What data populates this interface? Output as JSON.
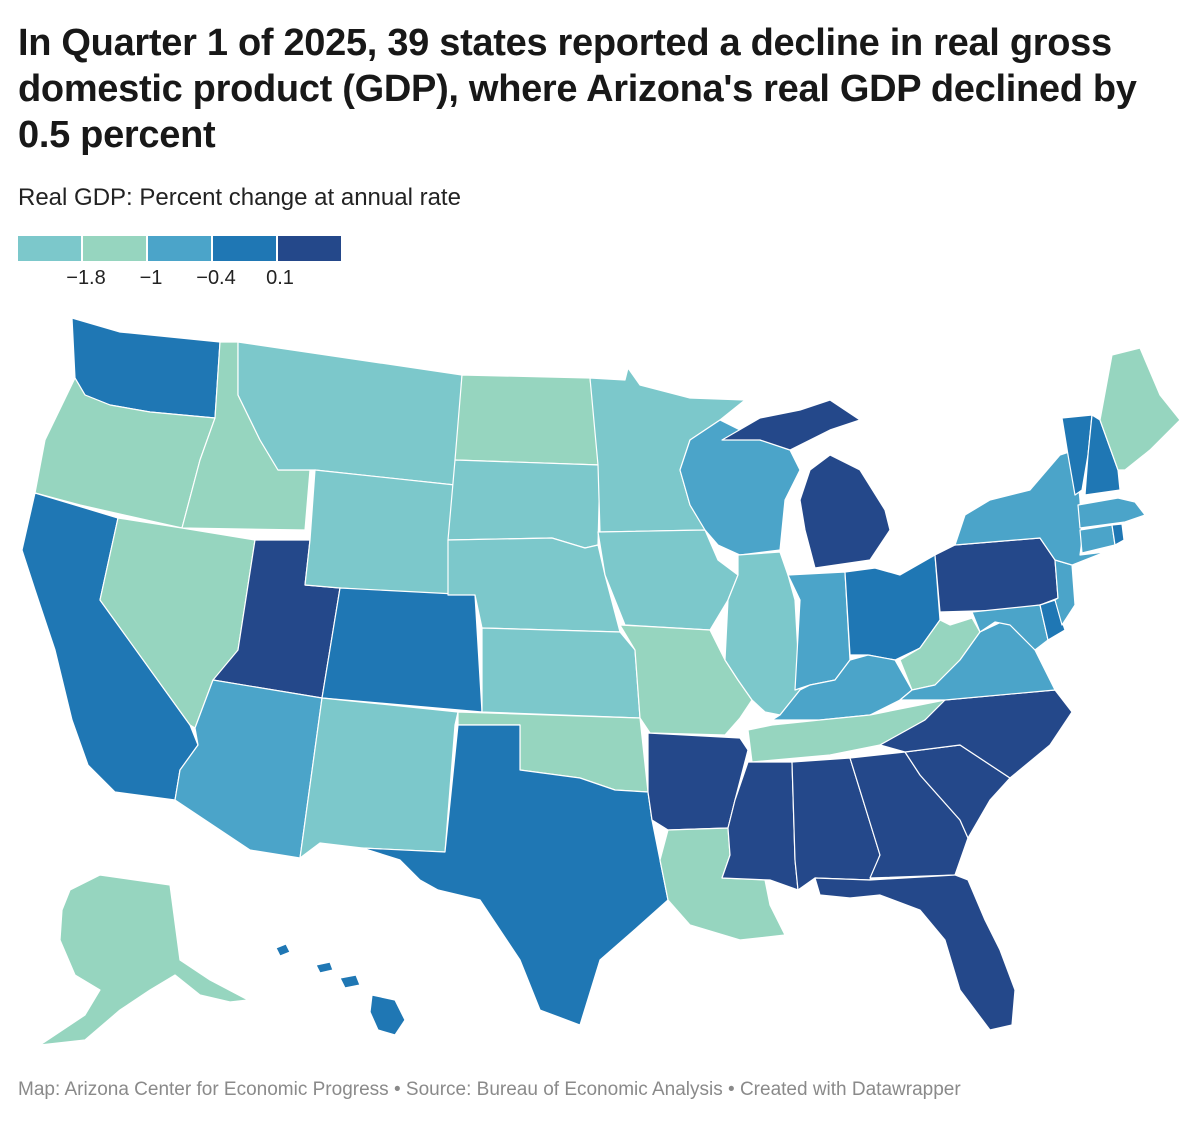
{
  "title": "In Quarter 1 of 2025, 39 states reported a decline in real gross domestic product (GDP), where Arizona's real GDP declined by 0.5 percent",
  "subtitle": "Real GDP: Percent change at annual rate",
  "legend": {
    "colors": [
      "#7cc8cb",
      "#96d5bf",
      "#4ba4c9",
      "#1f77b4",
      "#24488a"
    ],
    "ticks": [
      "−1.8",
      "−1",
      "−0.4",
      "0.1"
    ]
  },
  "footer": {
    "map_credit": "Map: Arizona Center for Economic Progress",
    "source": "Source: Bureau of Economic Analysis",
    "created": "Created with Datawrapper",
    "separator": "•"
  },
  "chart_data": {
    "type": "choropleth",
    "value_label": "Real GDP: Percent change at annual rate",
    "bins": [
      {
        "bin": 1,
        "color": "#7cc8cb",
        "range": "below −1.8"
      },
      {
        "bin": 2,
        "color": "#96d5bf",
        "range": "−1.8 to −1"
      },
      {
        "bin": 3,
        "color": "#4ba4c9",
        "range": "−1 to −0.4"
      },
      {
        "bin": 4,
        "color": "#1f77b4",
        "range": "−0.4 to 0.1"
      },
      {
        "bin": 5,
        "color": "#24488a",
        "range": "above 0.1"
      }
    ],
    "states": [
      {
        "id": "WA",
        "bin": 4
      },
      {
        "id": "OR",
        "bin": 2
      },
      {
        "id": "CA",
        "bin": 4
      },
      {
        "id": "ID",
        "bin": 2
      },
      {
        "id": "NV",
        "bin": 2
      },
      {
        "id": "UT",
        "bin": 5
      },
      {
        "id": "AZ",
        "bin": 3
      },
      {
        "id": "MT",
        "bin": 1
      },
      {
        "id": "WY",
        "bin": 1
      },
      {
        "id": "CO",
        "bin": 4
      },
      {
        "id": "NM",
        "bin": 1
      },
      {
        "id": "ND",
        "bin": 2
      },
      {
        "id": "SD",
        "bin": 1
      },
      {
        "id": "NE",
        "bin": 1
      },
      {
        "id": "KS",
        "bin": 1
      },
      {
        "id": "OK",
        "bin": 2
      },
      {
        "id": "TX",
        "bin": 4
      },
      {
        "id": "MN",
        "bin": 1
      },
      {
        "id": "IA",
        "bin": 1
      },
      {
        "id": "MO",
        "bin": 2
      },
      {
        "id": "AR",
        "bin": 5
      },
      {
        "id": "LA",
        "bin": 2
      },
      {
        "id": "WI",
        "bin": 3
      },
      {
        "id": "IL",
        "bin": 1
      },
      {
        "id": "MI",
        "bin": 5
      },
      {
        "id": "IN",
        "bin": 3
      },
      {
        "id": "OH",
        "bin": 4
      },
      {
        "id": "KY",
        "bin": 3
      },
      {
        "id": "TN",
        "bin": 2
      },
      {
        "id": "MS",
        "bin": 5
      },
      {
        "id": "AL",
        "bin": 5
      },
      {
        "id": "GA",
        "bin": 5
      },
      {
        "id": "FL",
        "bin": 5
      },
      {
        "id": "SC",
        "bin": 5
      },
      {
        "id": "NC",
        "bin": 5
      },
      {
        "id": "VA",
        "bin": 3
      },
      {
        "id": "WV",
        "bin": 2
      },
      {
        "id": "PA",
        "bin": 5
      },
      {
        "id": "NY",
        "bin": 3
      },
      {
        "id": "VT",
        "bin": 4
      },
      {
        "id": "NH",
        "bin": 4
      },
      {
        "id": "ME",
        "bin": 2
      },
      {
        "id": "MA",
        "bin": 3
      },
      {
        "id": "RI",
        "bin": 4
      },
      {
        "id": "CT",
        "bin": 3
      },
      {
        "id": "NJ",
        "bin": 3
      },
      {
        "id": "DE",
        "bin": 4
      },
      {
        "id": "MD",
        "bin": 3
      },
      {
        "id": "AK",
        "bin": 2
      },
      {
        "id": "HI",
        "bin": 4
      }
    ]
  }
}
